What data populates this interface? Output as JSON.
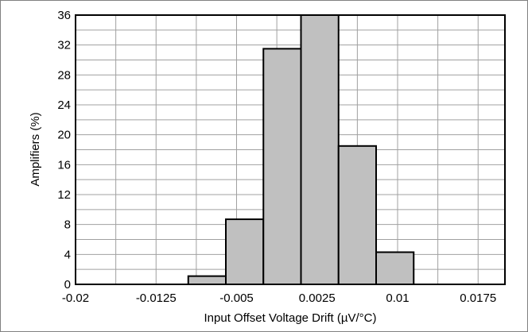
{
  "chart_data": {
    "type": "bar",
    "xlabel": "Input Offset Voltage Drift (µV/°C)",
    "ylabel": "Amplifiers (%)",
    "xlim": [
      -0.02,
      0.02
    ],
    "ylim": [
      0,
      36
    ],
    "x_ticks": [
      "-0.02",
      "-0.0125",
      "-0.005",
      "0.0025",
      "0.01",
      "0.0175"
    ],
    "x_tick_values": [
      -0.02,
      -0.0125,
      -0.005,
      0.0025,
      0.01,
      0.0175
    ],
    "y_ticks": [
      "0",
      "4",
      "8",
      "12",
      "16",
      "20",
      "24",
      "28",
      "32",
      "36"
    ],
    "y_tick_values": [
      0,
      4,
      8,
      12,
      16,
      20,
      24,
      28,
      32,
      36
    ],
    "bin_width": 0.0035,
    "bin_starts": [
      -0.0095,
      -0.006,
      -0.0025,
      0.001,
      0.0045,
      0.008
    ],
    "values": [
      1.1,
      8.7,
      31.5,
      36,
      18.5,
      4.3
    ],
    "grid": true,
    "bar_color": "#c0c0c0",
    "edge_color": "#000000"
  }
}
